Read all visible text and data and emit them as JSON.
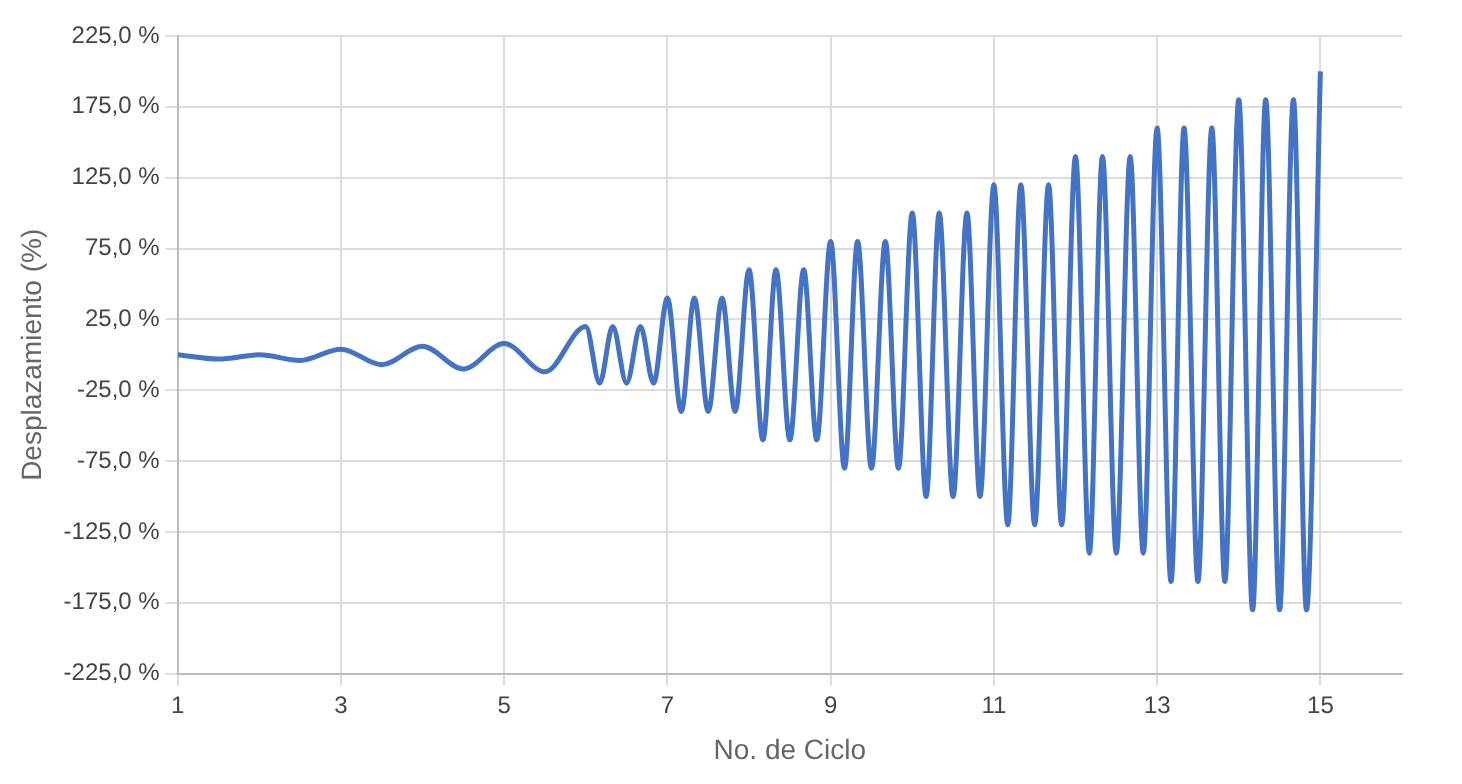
{
  "chart_data": {
    "type": "line",
    "xlabel": "No. de Ciclo",
    "ylabel": "Desplazamiento (%)",
    "xlim": [
      1,
      16
    ],
    "xticks": [
      1,
      3,
      5,
      7,
      9,
      11,
      13,
      15
    ],
    "ylim": [
      -225,
      225
    ],
    "yticks": [
      {
        "value": -225,
        "label": "-225,0 %"
      },
      {
        "value": -175,
        "label": "-175,0 %"
      },
      {
        "value": -125,
        "label": "-125,0 %"
      },
      {
        "value": -75,
        "label": "-75,0 %"
      },
      {
        "value": -25,
        "label": "-25,0 %"
      },
      {
        "value": 25,
        "label": "25,0 %"
      },
      {
        "value": 75,
        "label": "75,0 %"
      },
      {
        "value": 125,
        "label": "125,0 %"
      },
      {
        "value": 175,
        "label": "175,0 %"
      },
      {
        "value": 225,
        "label": "225,0 %"
      }
    ],
    "grid": true,
    "legend": false,
    "marker": "none",
    "line_style": "solid",
    "series": [
      {
        "color": "#4472c4",
        "x": [
          1,
          1.5,
          2,
          2.5,
          3,
          3.5,
          4,
          4.5,
          5,
          5.5,
          6,
          6.17,
          6.33,
          6.5,
          6.67,
          6.83,
          7,
          7.17,
          7.33,
          7.5,
          7.67,
          7.83,
          8,
          8.17,
          8.33,
          8.5,
          8.67,
          8.83,
          9,
          9.17,
          9.33,
          9.5,
          9.67,
          9.83,
          10,
          10.17,
          10.33,
          10.5,
          10.67,
          10.83,
          11,
          11.17,
          11.33,
          11.5,
          11.67,
          11.83,
          12,
          12.17,
          12.33,
          12.5,
          12.67,
          12.83,
          13,
          13.17,
          13.33,
          13.5,
          13.67,
          13.83,
          14,
          14.17,
          14.33,
          14.5,
          14.67,
          14.83,
          15
        ],
        "values": [
          0,
          -3,
          0,
          -4,
          4,
          -7,
          6,
          -10,
          8,
          -12,
          20,
          -20,
          20,
          -20,
          20,
          -20,
          40,
          -40,
          40,
          -40,
          40,
          -40,
          60,
          -60,
          60,
          -60,
          60,
          -60,
          80,
          -80,
          80,
          -80,
          80,
          -80,
          100,
          -100,
          100,
          -100,
          100,
          -100,
          120,
          -120,
          120,
          -120,
          120,
          -120,
          140,
          -140,
          140,
          -140,
          140,
          -140,
          160,
          -160,
          160,
          -160,
          160,
          -160,
          180,
          -180,
          180,
          -180,
          180,
          -180,
          200
        ]
      }
    ]
  }
}
